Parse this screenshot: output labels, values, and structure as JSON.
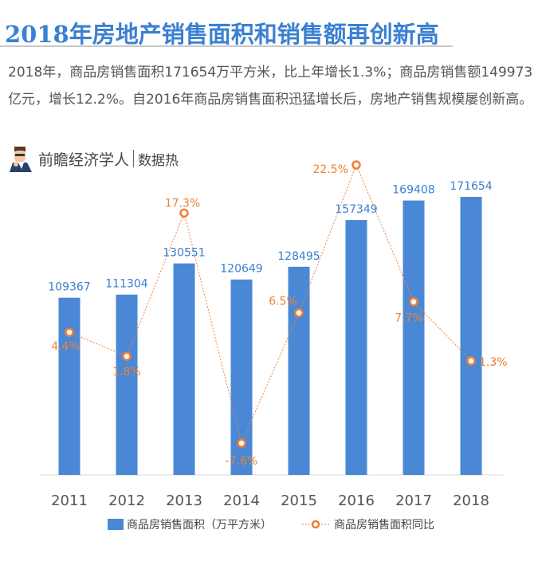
{
  "header": {
    "title": "2018年房地产销售面积和销售额再创新高",
    "paragraph": "2018年，商品房销售面积171654万平方米，比上年增长1.3%；商品房销售额149973亿元，增长12.2%。自2016年商品房销售面积迅猛增长后，房地产销售规模屡创新高。",
    "brand_name": "前瞻经济学人",
    "brand_tag": "数据热",
    "brand_icon": "economist-avatar-icon"
  },
  "colors": {
    "title": "#3b80d2",
    "bar": "#4a88d6",
    "line": "#f08030",
    "bar_label": "#3b7fd0"
  },
  "chart_data": {
    "type": "bar+line",
    "categories": [
      "2011",
      "2012",
      "2013",
      "2014",
      "2015",
      "2016",
      "2017",
      "2018"
    ],
    "series": [
      {
        "name": "商品房销售面积（万平方米）",
        "type": "bar",
        "values": [
          109367,
          111304,
          130551,
          120649,
          128495,
          157349,
          169408,
          171654
        ],
        "labels": [
          "109367",
          "111304",
          "130551",
          "120649",
          "128495",
          "157349",
          "169408",
          "171654"
        ]
      },
      {
        "name": "商品房销售面积同比",
        "type": "line",
        "unit": "%",
        "values": [
          4.4,
          1.8,
          17.3,
          -7.6,
          6.5,
          22.5,
          7.7,
          1.3
        ],
        "labels": [
          "4.4%",
          "1.8%",
          "17.3%",
          "-7.6%",
          "6.5%",
          "22.5%",
          "7.7%",
          "1.3%"
        ]
      }
    ],
    "grid": false,
    "legend": "bottom"
  }
}
